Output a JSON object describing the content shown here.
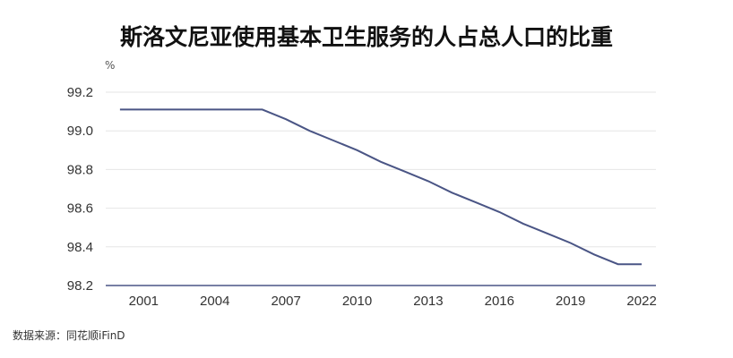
{
  "title": "斯洛文尼亚使用基本卫生服务的人占总人口的比重",
  "unit": "%",
  "source": "数据来源：同花顺iFinD",
  "colors": {
    "line": "#4a5585",
    "grid": "#e6e6e6",
    "axis": "#4a5585"
  },
  "chart_data": {
    "type": "line",
    "title": "斯洛文尼亚使用基本卫生服务的人占总人口的比重",
    "ylabel": "%",
    "ylim": [
      98.2,
      99.2
    ],
    "yticks": [
      "98.2",
      "98.4",
      "98.6",
      "98.8",
      "99.0",
      "99.2"
    ],
    "xticks": [
      "2001",
      "2004",
      "2007",
      "2010",
      "2013",
      "2016",
      "2019",
      "2022"
    ],
    "grid": true,
    "series": [
      {
        "x": [
          2000,
          2001,
          2002,
          2003,
          2004,
          2005,
          2006,
          2007,
          2008,
          2009,
          2010,
          2011,
          2012,
          2013,
          2014,
          2015,
          2016,
          2017,
          2018,
          2019,
          2020,
          2021,
          2022
        ],
        "values": [
          99.11,
          99.11,
          99.11,
          99.11,
          99.11,
          99.11,
          99.11,
          99.06,
          99.0,
          98.95,
          98.9,
          98.84,
          98.79,
          98.74,
          98.68,
          98.63,
          98.58,
          98.52,
          98.47,
          98.42,
          98.36,
          98.31,
          98.31
        ]
      }
    ]
  }
}
